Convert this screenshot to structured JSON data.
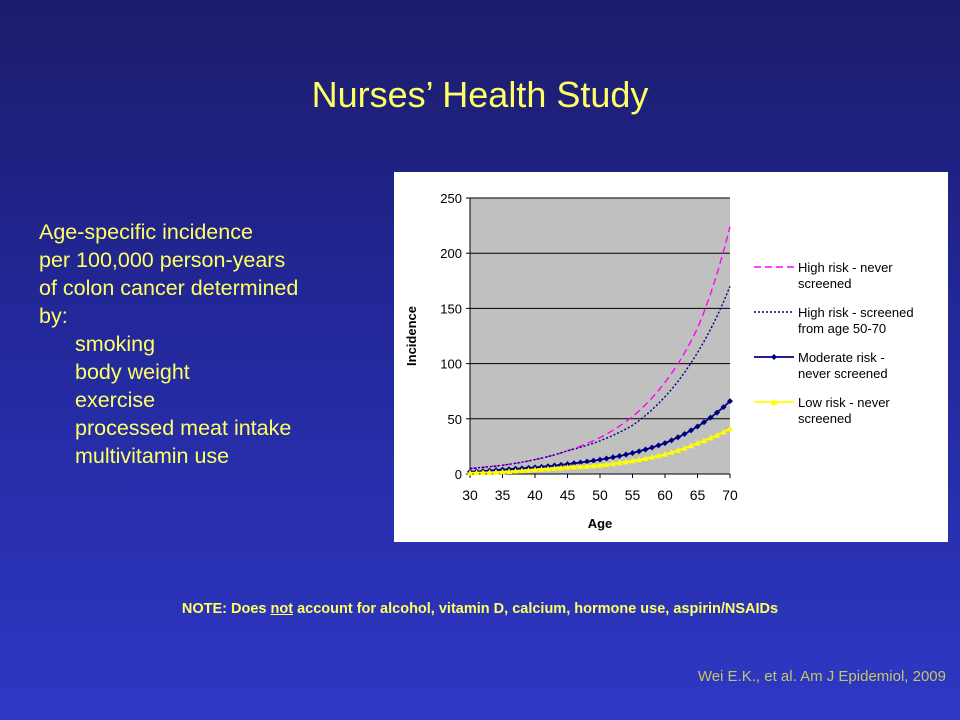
{
  "slide": {
    "title": "Nurses’ Health Study",
    "description": {
      "intro": [
        "Age-specific incidence",
        "per 100,000 person-years",
        "of colon cancer determined",
        "by:"
      ],
      "factors": [
        "smoking",
        "body weight",
        "exercise",
        "processed meat intake",
        "multivitamin use"
      ]
    },
    "note": {
      "before": "NOTE: Does ",
      "emph": "not",
      "after": " account for alcohol, vitamin D, calcium, hormone use, aspirin/NSAIDs"
    },
    "citation": "Wei E.K., et al. Am J Epidemiol, 2009"
  },
  "chart_data": {
    "type": "line",
    "xlabel": "Age",
    "ylabel": "Incidence",
    "xlim": [
      30,
      70
    ],
    "ylim": [
      0,
      250
    ],
    "xticks": [
      "30",
      "35",
      "40",
      "45",
      "50",
      "55",
      "60",
      "65",
      "70"
    ],
    "yticks": [
      "0",
      "50",
      "100",
      "150",
      "200",
      "250"
    ],
    "grid": true,
    "legend_position": "right",
    "x": [
      30,
      35,
      40,
      45,
      50,
      55,
      60,
      65,
      70
    ],
    "series": [
      {
        "name": "High risk - never screened",
        "legend_lines": [
          "High risk - never",
          "screened"
        ],
        "values": [
          5,
          8,
          13,
          21,
          33,
          52,
          83,
          132,
          224
        ],
        "color": "#ff00ff",
        "style": "dashed",
        "marker": "none"
      },
      {
        "name": "High risk - screened from age 50-70",
        "legend_lines": [
          "High risk - screened",
          "from age 50-70"
        ],
        "values": [
          5,
          8,
          13,
          21,
          30,
          44,
          70,
          110,
          170
        ],
        "color": "#000080",
        "style": "dotted",
        "marker": "none"
      },
      {
        "name": "Moderate risk - never screened",
        "legend_lines": [
          "Moderate risk -",
          "never screened"
        ],
        "values": [
          2,
          4,
          6,
          9,
          13,
          19,
          28,
          43,
          66
        ],
        "color": "#000080",
        "style": "solid",
        "marker": "diamond"
      },
      {
        "name": "Low risk - never screened",
        "legend_lines": [
          "Low risk - never",
          "screened"
        ],
        "values": [
          1,
          2,
          4,
          6,
          8,
          12,
          18,
          28,
          41
        ],
        "color": "#ffff00",
        "style": "solid",
        "marker": "triangle"
      }
    ]
  }
}
